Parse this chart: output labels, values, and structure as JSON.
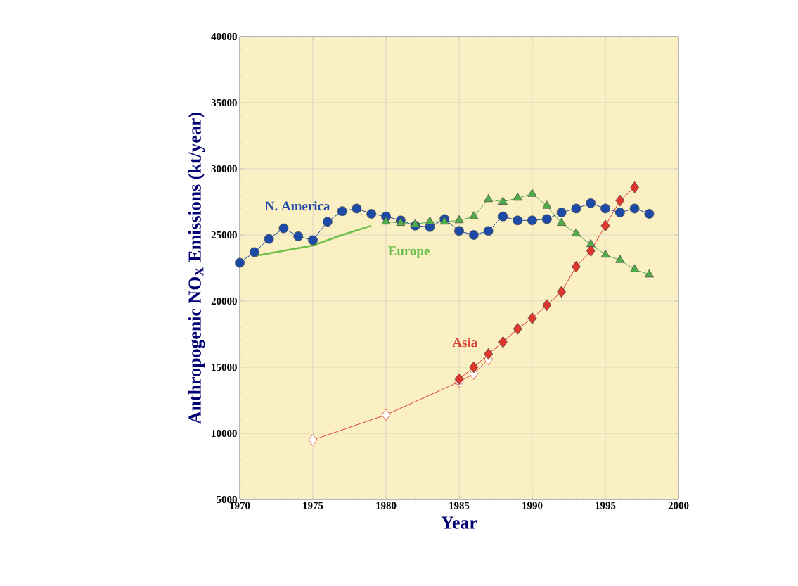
{
  "chart_data": {
    "type": "line",
    "xlabel": "Year",
    "ylabel": "Anthropogenic NO$_{X}$ Emissions (kt/year)",
    "xlim": [
      1970,
      2000
    ],
    "xticks": [
      1970,
      1975,
      1980,
      1985,
      1990,
      1995,
      2000
    ],
    "ylim": [
      5000,
      40000
    ],
    "yticks": [
      5000,
      10000,
      15000,
      20000,
      25000,
      30000,
      35000,
      40000
    ],
    "grid": true,
    "series": [
      {
        "name": "N. America",
        "color": "#1c4aa6",
        "marker": "circle",
        "x": [
          1970,
          1971,
          1972,
          1973,
          1974,
          1975,
          1976,
          1977,
          1978,
          1979,
          1980,
          1981,
          1982,
          1983,
          1984,
          1985,
          1986,
          1987,
          1988,
          1989,
          1990,
          1991,
          1992,
          1993,
          1994,
          1995,
          1996,
          1997,
          1998
        ],
        "values": [
          22900,
          23700,
          24700,
          25500,
          24900,
          24600,
          26000,
          26800,
          27000,
          26600,
          26400,
          26100,
          25700,
          25600,
          26200,
          25300,
          25000,
          25300,
          26400,
          26100,
          26100,
          26200,
          26700,
          27000,
          27400,
          27000,
          26700,
          27000,
          26600
        ]
      },
      {
        "name": "Europe",
        "color": "#6cc04a",
        "marker": "none",
        "x": [
          1971,
          1973,
          1975,
          1977,
          1979
        ],
        "values": [
          23400,
          23800,
          24200,
          25000,
          25700
        ]
      },
      {
        "color": "#4fae4a",
        "marker": "triangle",
        "x": [
          1980,
          1981,
          1982,
          1983,
          1984,
          1985,
          1986,
          1987,
          1988,
          1989,
          1990,
          1991,
          1992,
          1993,
          1994,
          1995,
          1996,
          1997,
          1998
        ],
        "values": [
          26000,
          25900,
          25800,
          26000,
          26000,
          26100,
          26400,
          27700,
          27500,
          27800,
          28100,
          27200,
          25900,
          25100,
          24300,
          23500,
          23100,
          22400,
          22000
        ]
      },
      {
        "name": "Asia",
        "color": "#d8453a",
        "marker": "diamond",
        "x": [
          1975,
          1980,
          1985,
          1986,
          1987
        ],
        "values": [
          9500,
          11400,
          13900,
          14500,
          15600
        ]
      },
      {
        "color": "#e0352c",
        "marker": "diamond",
        "x": [
          1985,
          1986,
          1987,
          1988,
          1989,
          1990,
          1991,
          1992,
          1993,
          1994,
          1995,
          1996,
          1997
        ],
        "values": [
          14100,
          15000,
          16000,
          16900,
          17900,
          18700,
          19700,
          20700,
          22600,
          23800,
          25700,
          27600,
          28600
        ]
      }
    ]
  }
}
